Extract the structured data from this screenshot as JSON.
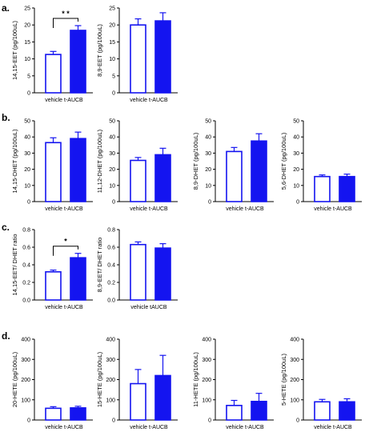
{
  "colors": {
    "bar_fill": "#1414f0",
    "bar_edge": "#1414f0",
    "axis": "#000000",
    "open_fill": "#ffffff"
  },
  "panels": [
    {
      "label": "a."
    },
    {
      "label": "b."
    },
    {
      "label": "c."
    },
    {
      "label": "d."
    }
  ],
  "chart_data": [
    {
      "type": "bar",
      "panel": "a.",
      "ylabel": "14,15-EET (pg/100uL)",
      "ylim": [
        0,
        25
      ],
      "yticks": [
        "0",
        "5",
        "10",
        "15",
        "20",
        "25"
      ],
      "categories": [
        "vehicle",
        "t-AUCB"
      ],
      "values": [
        11.3,
        18.4
      ],
      "errors": [
        0.9,
        1.4
      ],
      "significance": "* *"
    },
    {
      "type": "bar",
      "panel": "a.",
      "ylabel": "8,9-EET (pg/100uL)",
      "ylim": [
        0,
        25
      ],
      "yticks": [
        "0",
        "5",
        "10",
        "15",
        "20",
        "25"
      ],
      "categories": [
        "vehicle",
        "t-AUCB"
      ],
      "values": [
        20.0,
        21.2
      ],
      "errors": [
        1.8,
        2.4
      ]
    },
    {
      "type": "bar",
      "panel": "b.",
      "ylabel": "14,15-DHET (pg/100uL)",
      "ylim": [
        0,
        50
      ],
      "yticks": [
        "0",
        "10",
        "20",
        "30",
        "40",
        "50"
      ],
      "categories": [
        "vehicle",
        "t-AUCB"
      ],
      "values": [
        36.5,
        39.0
      ],
      "errors": [
        3.0,
        4.0
      ]
    },
    {
      "type": "bar",
      "panel": "b.",
      "ylabel": "11,12-DHET (pg/100uL)",
      "ylim": [
        0,
        50
      ],
      "yticks": [
        "0",
        "10",
        "20",
        "30",
        "40",
        "50"
      ],
      "categories": [
        "vehicle",
        "t-AUCB"
      ],
      "values": [
        25.5,
        29.0
      ],
      "errors": [
        1.8,
        4.0
      ]
    },
    {
      "type": "bar",
      "panel": "b.",
      "ylabel": "8,9-DHET (pg/100uL)",
      "ylim": [
        0,
        50
      ],
      "yticks": [
        "0",
        "10",
        "20",
        "30",
        "40",
        "50"
      ],
      "categories": [
        "vehicle",
        "t-AUCB"
      ],
      "values": [
        31.0,
        37.5
      ],
      "errors": [
        2.5,
        4.5
      ]
    },
    {
      "type": "bar",
      "panel": "b.",
      "ylabel": "5,6-DHET (pg/100uL)",
      "ylim": [
        0,
        50
      ],
      "yticks": [
        "0",
        "10",
        "20",
        "30",
        "40",
        "50"
      ],
      "categories": [
        "vehicle",
        "t-AUCB"
      ],
      "values": [
        15.5,
        15.5
      ],
      "errors": [
        1.0,
        1.5
      ]
    },
    {
      "type": "bar",
      "panel": "c.",
      "ylabel": "14,15-EET/ DHET ratio",
      "ylim": [
        0,
        0.8
      ],
      "yticks": [
        "0.0",
        "0.2",
        "0.4",
        "0.6",
        "0.8"
      ],
      "categories": [
        "vehicle",
        "t-AUCB"
      ],
      "values": [
        0.32,
        0.48
      ],
      "errors": [
        0.02,
        0.05
      ],
      "significance": "*"
    },
    {
      "type": "bar",
      "panel": "c.",
      "ylabel": "8,9-EET/ DHET ratio",
      "ylim": [
        0,
        0.8
      ],
      "yticks": [
        "0.0",
        "0.2",
        "0.4",
        "0.6",
        "0.8"
      ],
      "categories": [
        "vehicle",
        "tAUCB"
      ],
      "values": [
        0.63,
        0.59
      ],
      "errors": [
        0.03,
        0.05
      ]
    },
    {
      "type": "bar",
      "panel": "d.",
      "ylabel": "20-HETE (pg/100uL)",
      "ylim": [
        0,
        400
      ],
      "yticks": [
        "0",
        "100",
        "200",
        "300",
        "400"
      ],
      "categories": [
        "vehicle",
        "t-AUCB"
      ],
      "values": [
        58,
        60
      ],
      "errors": [
        8,
        8
      ]
    },
    {
      "type": "bar",
      "panel": "d.",
      "ylabel": "15-HETE (pg/100uL)",
      "ylim": [
        0,
        400
      ],
      "yticks": [
        "0",
        "100",
        "200",
        "300",
        "400"
      ],
      "categories": [
        "vehicle",
        "t-AUCB"
      ],
      "values": [
        180,
        220
      ],
      "errors": [
        70,
        100
      ]
    },
    {
      "type": "bar",
      "panel": "d.",
      "ylabel": "11-HETE (pg/100uL)",
      "ylim": [
        0,
        400
      ],
      "yticks": [
        "0",
        "100",
        "200",
        "300",
        "400"
      ],
      "categories": [
        "vehicle",
        "t-AUCB"
      ],
      "values": [
        72,
        92
      ],
      "errors": [
        25,
        40
      ]
    },
    {
      "type": "bar",
      "panel": "d.",
      "ylabel": "5-HETE (pg/100uL)",
      "ylim": [
        0,
        400
      ],
      "yticks": [
        "0",
        "100",
        "200",
        "300",
        "400"
      ],
      "categories": [
        "vehicle",
        "t-AUCB"
      ],
      "values": [
        90,
        90
      ],
      "errors": [
        12,
        15
      ]
    }
  ]
}
